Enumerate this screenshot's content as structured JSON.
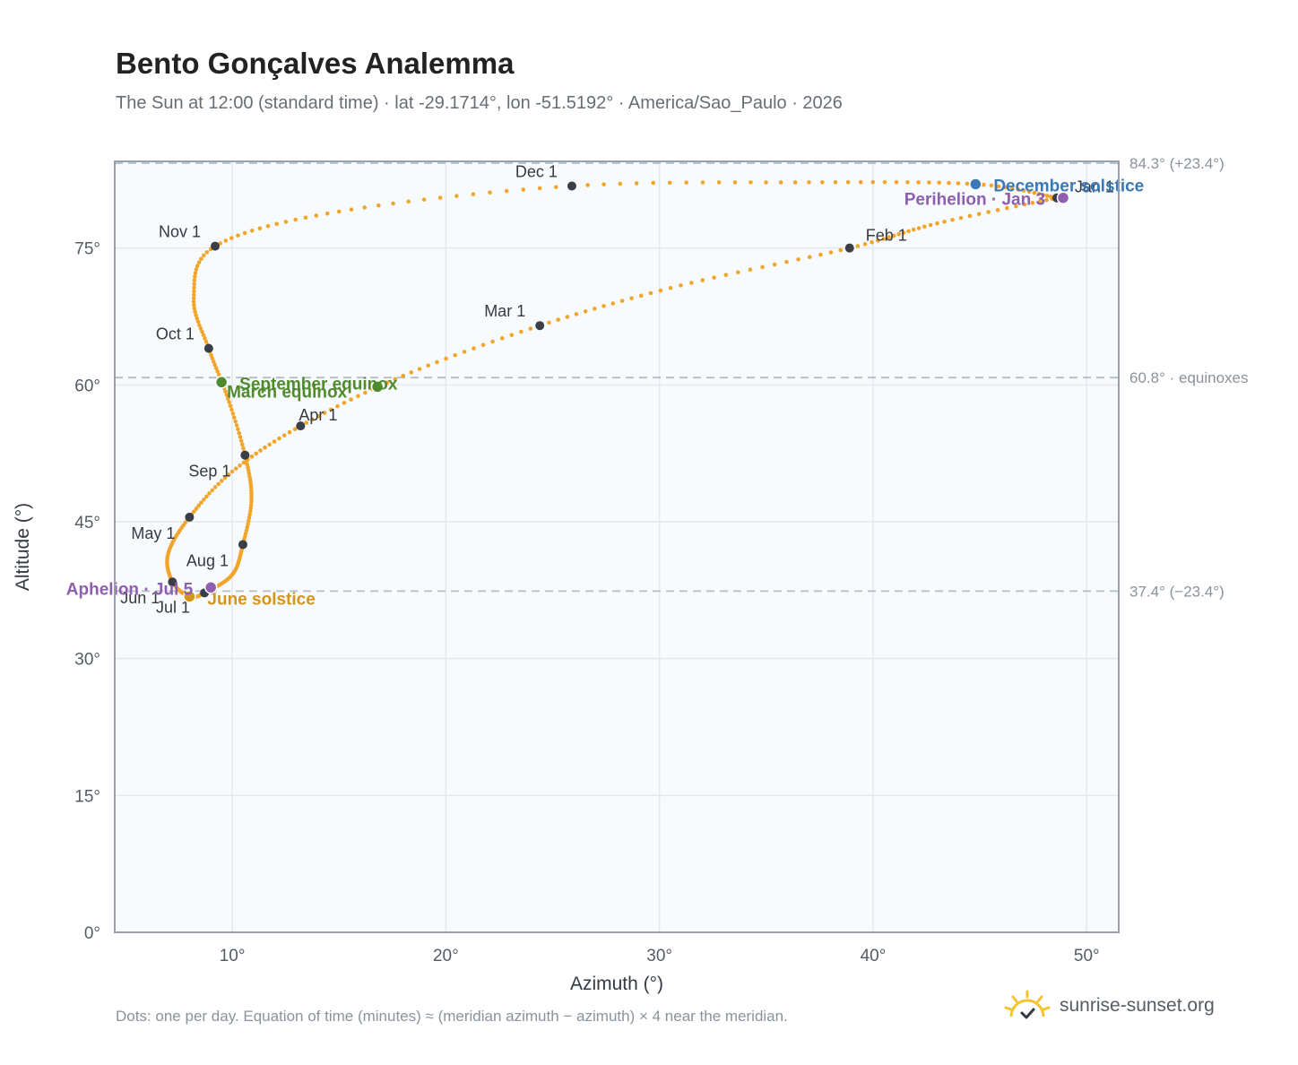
{
  "title": "Bento Gonçalves Analemma",
  "subtitle": "The Sun at 12:00 (standard time) · lat -29.1714°, lon -51.5192° · America/Sao_Paulo · 2026",
  "footnote": "Dots: one per day. Equation of time (minutes) ≈ (meridian azimuth − azimuth) × 4 near the meridian.",
  "brand": {
    "text": "sunrise-sunset.org",
    "icon": "sun-logo-icon"
  },
  "colors": {
    "curve": "#f2a52b",
    "month_marker": "#3a3f47",
    "equinox": "#4f8a2d",
    "june_solstice": "#d4961a",
    "december_solstice": "#3a78b8",
    "apsis": "#8e5fae",
    "reference_line": "#b4bdc6",
    "plot_background": "#f8fbfd"
  },
  "chart_data": {
    "type": "scatter",
    "xlabel": "Azimuth (°)",
    "ylabel": "Altitude (°)",
    "xlim": [
      4.5,
      51.5
    ],
    "ylim": [
      0,
      84.5
    ],
    "x_ticks": [
      10,
      20,
      30,
      40,
      50
    ],
    "y_ticks": [
      0,
      15,
      30,
      45,
      60,
      75
    ],
    "x_tick_labels": [
      "10°",
      "20°",
      "30°",
      "40°",
      "50°"
    ],
    "y_tick_labels": [
      "0°",
      "15°",
      "30°",
      "45°",
      "60°",
      "75°"
    ],
    "grid": true,
    "reference_lines": [
      {
        "y": 84.3,
        "label": "84.3° (+23.4°)"
      },
      {
        "y": 60.8,
        "label": "60.8° · equinoxes"
      },
      {
        "y": 37.4,
        "label": "37.4° (−23.4°)"
      }
    ],
    "month_markers": [
      {
        "label": "Jan 1",
        "x": 48.6,
        "y": 80.5
      },
      {
        "label": "Feb 1",
        "x": 38.9,
        "y": 75.0
      },
      {
        "label": "Mar 1",
        "x": 24.4,
        "y": 66.5
      },
      {
        "label": "Apr 1",
        "x": 13.2,
        "y": 55.5
      },
      {
        "label": "May 1",
        "x": 8.0,
        "y": 45.5
      },
      {
        "label": "Jun 1",
        "x": 7.2,
        "y": 38.4
      },
      {
        "label": "Jul 1",
        "x": 8.7,
        "y": 37.2
      },
      {
        "label": "Aug 1",
        "x": 10.5,
        "y": 42.5
      },
      {
        "label": "Sep 1",
        "x": 10.6,
        "y": 52.3
      },
      {
        "label": "Oct 1",
        "x": 8.9,
        "y": 64.0
      },
      {
        "label": "Nov 1",
        "x": 9.2,
        "y": 75.2
      },
      {
        "label": "Dec 1",
        "x": 25.9,
        "y": 81.8
      }
    ],
    "events": [
      {
        "label": "March equinox",
        "x": 16.8,
        "y": 59.8,
        "color": "equinox"
      },
      {
        "label": "September equinox",
        "x": 9.5,
        "y": 60.3,
        "color": "equinox"
      },
      {
        "label": "June solstice",
        "x": 8.0,
        "y": 36.8,
        "color": "june_solstice"
      },
      {
        "label": "December solstice",
        "x": 44.8,
        "y": 82.0,
        "color": "december_solstice"
      },
      {
        "label": "Perihelion · Jan 3",
        "x": 48.9,
        "y": 80.5,
        "color": "apsis"
      },
      {
        "label": "Aphelion · Jul 5",
        "x": 9.0,
        "y": 37.8,
        "color": "apsis"
      }
    ],
    "daily_curve_keypoints": [
      {
        "x": 48.6,
        "y": 80.5
      },
      {
        "x": 43.0,
        "y": 77.7
      },
      {
        "x": 38.9,
        "y": 75.0
      },
      {
        "x": 31.0,
        "y": 70.9
      },
      {
        "x": 24.4,
        "y": 66.5
      },
      {
        "x": 18.0,
        "y": 61.0
      },
      {
        "x": 13.2,
        "y": 55.5
      },
      {
        "x": 10.0,
        "y": 50.5
      },
      {
        "x": 8.0,
        "y": 45.5
      },
      {
        "x": 7.0,
        "y": 41.5
      },
      {
        "x": 7.2,
        "y": 38.4
      },
      {
        "x": 8.0,
        "y": 36.8
      },
      {
        "x": 8.7,
        "y": 37.2
      },
      {
        "x": 10.0,
        "y": 39.2
      },
      {
        "x": 10.5,
        "y": 42.5
      },
      {
        "x": 10.9,
        "y": 47.5
      },
      {
        "x": 10.6,
        "y": 52.3
      },
      {
        "x": 9.8,
        "y": 58.5
      },
      {
        "x": 8.9,
        "y": 64.0
      },
      {
        "x": 8.2,
        "y": 69.5
      },
      {
        "x": 9.2,
        "y": 75.2
      },
      {
        "x": 15.0,
        "y": 79.0
      },
      {
        "x": 25.9,
        "y": 81.8
      },
      {
        "x": 37.0,
        "y": 82.2
      },
      {
        "x": 44.8,
        "y": 82.0
      },
      {
        "x": 48.6,
        "y": 80.5
      }
    ]
  }
}
